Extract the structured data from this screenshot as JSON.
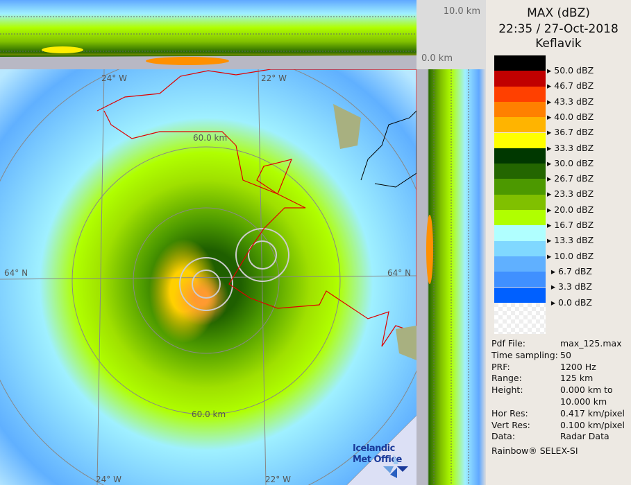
{
  "header": {
    "title": "MAX (dBZ)",
    "datetime": "22:35 / 27-Oct-2018",
    "site": "Keflavik"
  },
  "cross_section": {
    "top_label": "10.0 km",
    "bottom_label": "0.0 km"
  },
  "legend": {
    "colors": [
      "#000000",
      "#c00000",
      "#ff4000",
      "#ff8000",
      "#ffb400",
      "#ffff00",
      "#003800",
      "#236600",
      "#4c9900",
      "#80c000",
      "#b0ff00",
      "#b0ffff",
      "#80d8ff",
      "#60b0ff",
      "#4090ff",
      "#0060ff"
    ],
    "labels": [
      "50.0 dBZ",
      "46.7 dBZ",
      "43.3 dBZ",
      "40.0 dBZ",
      "36.7 dBZ",
      "33.3 dBZ",
      "30.0 dBZ",
      "26.7 dBZ",
      "23.3 dBZ",
      "20.0 dBZ",
      "16.7 dBZ",
      "13.3 dBZ",
      "10.0 dBZ",
      "6.7 dBZ",
      "3.3 dBZ",
      "0.0 dBZ"
    ]
  },
  "info": [
    {
      "k": "Pdf File:",
      "v": "max_125.max"
    },
    {
      "k": "Time sampling:",
      "v": "50"
    },
    {
      "k": "PRF:",
      "v": "1200 Hz"
    },
    {
      "k": "Range:",
      "v": "125 km"
    },
    {
      "k": "Height:",
      "v": "0.000 km to"
    },
    {
      "k": "",
      "v": "10.000 km"
    },
    {
      "k": "Hor Res:",
      "v": "0.417 km/pixel"
    },
    {
      "k": "Vert Res:",
      "v": "0.100 km/pixel"
    },
    {
      "k": "Data:",
      "v": "Radar Data"
    }
  ],
  "footer": "Rainbow® SELEX-SI",
  "map": {
    "lon_top_left": "24° W",
    "lon_top_right": "22° W",
    "lon_bottom_left": "24° W",
    "lon_bottom_right": "22° W",
    "lat_left": "64° N",
    "lat_right": "64° N",
    "ring_top": "60.0 km",
    "ring_bottom": "60.0 km",
    "logo": "Icelandic Met Office"
  }
}
